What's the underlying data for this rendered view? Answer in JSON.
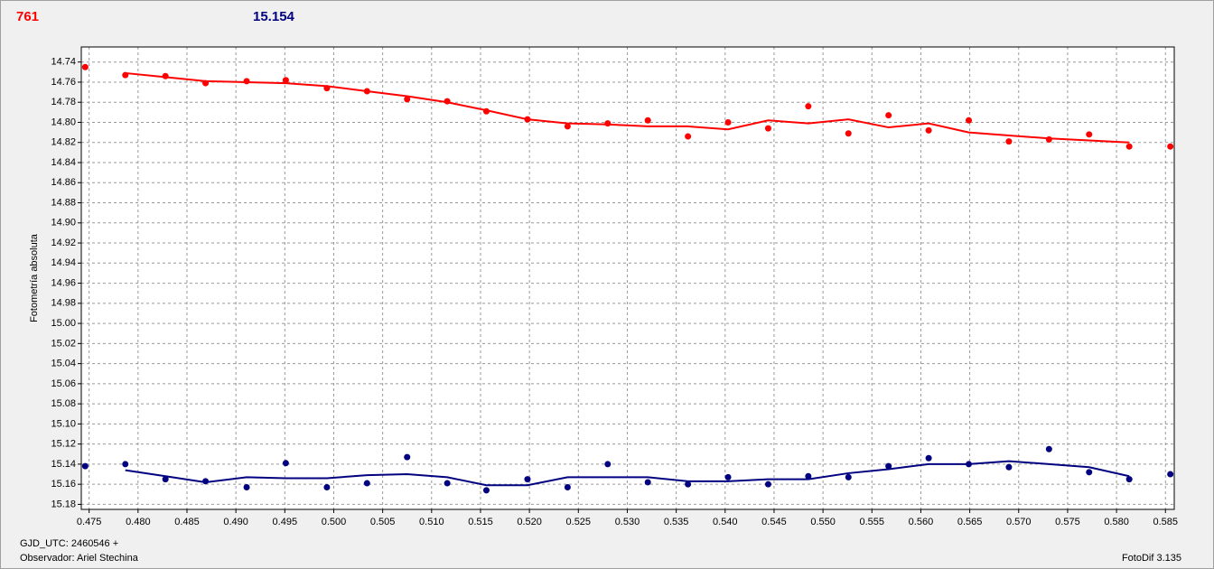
{
  "header": {
    "left": "761",
    "right": "15.154"
  },
  "footer": {
    "gjd": "GJD_UTC: 2460546 +",
    "observer": "Observador: Ariel Stechina",
    "version": "FotoDif 3.135"
  },
  "chart_data": {
    "type": "line",
    "ylabel": "Fotometría absoluta",
    "xlim": [
      0.4742,
      0.5859
    ],
    "ylim": [
      14.725,
      15.185
    ],
    "y_inverted": true,
    "grid": true,
    "xticks": [
      0.475,
      {
        "value": 0.48,
        "label": "0.480"
      },
      0.485,
      {
        "value": 0.49,
        "label": "0.490"
      },
      0.495,
      {
        "value": 0.5,
        "label": "0.500"
      },
      0.505,
      {
        "value": 0.51,
        "label": "0.510"
      },
      0.515,
      {
        "value": 0.52,
        "label": "0.520"
      },
      0.525,
      {
        "value": 0.53,
        "label": "0.530"
      },
      0.535,
      {
        "value": 0.54,
        "label": "0.540"
      },
      0.545,
      {
        "value": 0.55,
        "label": "0.550"
      },
      0.555,
      {
        "value": 0.56,
        "label": "0.560"
      },
      0.565,
      {
        "value": 0.57,
        "label": "0.570"
      },
      0.575,
      {
        "value": 0.58,
        "label": "0.580"
      },
      0.585
    ],
    "yticks": [
      14.74,
      14.76,
      14.78,
      {
        "value": 14.8,
        "label": "14.80"
      },
      14.82,
      14.84,
      14.86,
      14.88,
      {
        "value": 14.9,
        "label": "14.90"
      },
      14.92,
      14.94,
      14.96,
      14.98,
      {
        "value": 15.0,
        "label": "15.00"
      },
      15.02,
      15.04,
      15.06,
      15.08,
      {
        "value": 15.1,
        "label": "15.10"
      },
      15.12,
      15.14,
      15.16,
      15.18
    ],
    "series": [
      {
        "color": "#ff0000",
        "style": "markers",
        "x": [
          0.4746,
          0.4787,
          0.4828,
          0.4869,
          0.4911,
          0.4951,
          0.4993,
          0.5034,
          0.5075,
          0.5116,
          0.5156,
          0.5198,
          0.5239,
          0.528,
          0.5321,
          0.5362,
          0.5403,
          0.5444,
          0.5485,
          0.5526,
          0.5567,
          0.5608,
          0.5649,
          0.569,
          0.5731,
          0.5772,
          0.5813,
          0.5855
        ],
        "values": [
          14.745,
          14.753,
          14.754,
          14.761,
          14.759,
          14.758,
          14.766,
          14.769,
          14.777,
          14.779,
          14.789,
          14.797,
          14.804,
          14.801,
          14.798,
          14.814,
          14.8,
          14.806,
          14.784,
          14.811,
          14.793,
          14.808,
          14.798,
          14.819,
          14.817,
          14.812,
          14.824,
          14.824
        ]
      },
      {
        "color": "#ff0000",
        "style": "line",
        "x": [
          0.4787,
          0.4828,
          0.4869,
          0.4911,
          0.4951,
          0.4993,
          0.5034,
          0.5075,
          0.5116,
          0.5156,
          0.5198,
          0.5239,
          0.528,
          0.5321,
          0.5362,
          0.5403,
          0.5444,
          0.5485,
          0.5526,
          0.5567,
          0.5608,
          0.5649,
          0.569,
          0.5731,
          0.5772,
          0.5813
        ],
        "values": [
          14.751,
          14.755,
          14.759,
          14.76,
          14.761,
          14.764,
          14.769,
          14.774,
          14.78,
          14.788,
          14.797,
          14.801,
          14.802,
          14.804,
          14.804,
          14.807,
          14.798,
          14.801,
          14.797,
          14.805,
          14.801,
          14.81,
          14.813,
          14.816,
          14.818,
          14.82
        ]
      },
      {
        "color": "#000080",
        "style": "markers",
        "x": [
          0.4746,
          0.4787,
          0.4828,
          0.4869,
          0.4911,
          0.4951,
          0.4993,
          0.5034,
          0.5075,
          0.5116,
          0.5156,
          0.5198,
          0.5239,
          0.528,
          0.5321,
          0.5362,
          0.5403,
          0.5444,
          0.5485,
          0.5526,
          0.5567,
          0.5608,
          0.5649,
          0.569,
          0.5731,
          0.5772,
          0.5813,
          0.5855
        ],
        "values": [
          15.142,
          15.14,
          15.155,
          15.157,
          15.163,
          15.139,
          15.163,
          15.159,
          15.133,
          15.159,
          15.166,
          15.155,
          15.163,
          15.14,
          15.158,
          15.16,
          15.153,
          15.16,
          15.152,
          15.153,
          15.142,
          15.134,
          15.14,
          15.143,
          15.125,
          15.148,
          15.155,
          15.15
        ]
      },
      {
        "color": "#000080",
        "style": "line",
        "x": [
          0.4787,
          0.4828,
          0.4869,
          0.4911,
          0.4951,
          0.4993,
          0.5034,
          0.5075,
          0.5116,
          0.5156,
          0.5198,
          0.5239,
          0.528,
          0.5321,
          0.5362,
          0.5403,
          0.5444,
          0.5485,
          0.5526,
          0.5567,
          0.5608,
          0.5649,
          0.569,
          0.5731,
          0.5772,
          0.5813
        ],
        "values": [
          15.146,
          15.152,
          15.158,
          15.153,
          15.154,
          15.154,
          15.151,
          15.15,
          15.153,
          15.161,
          15.161,
          15.153,
          15.153,
          15.153,
          15.157,
          15.157,
          15.155,
          15.155,
          15.149,
          15.145,
          15.14,
          15.14,
          15.137,
          15.14,
          15.143,
          15.152
        ]
      }
    ]
  }
}
